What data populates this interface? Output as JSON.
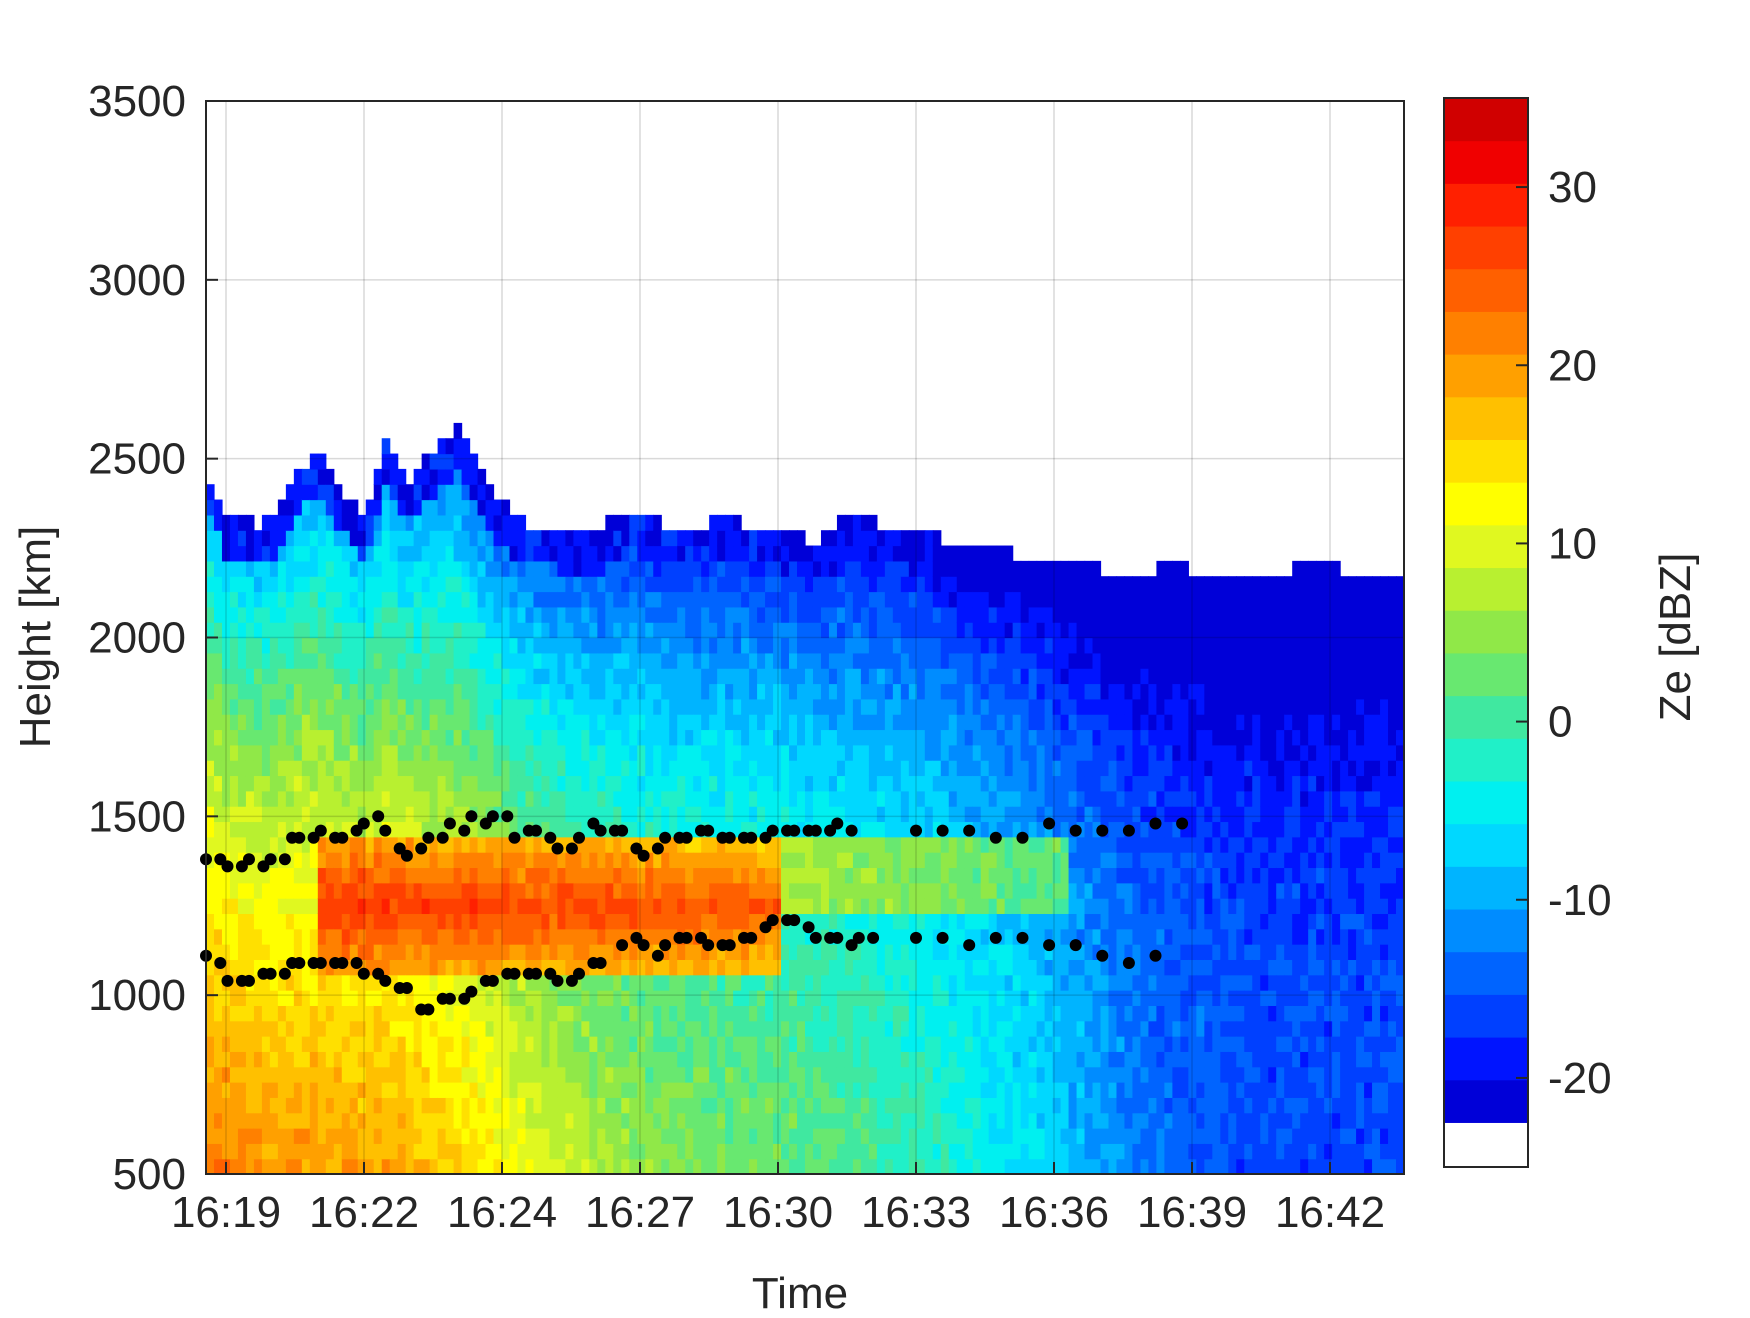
{
  "chart_data": {
    "type": "heatmap",
    "title": "",
    "xlabel": "Time",
    "ylabel": "Height [km]",
    "colorbar_label": "Ze [dBZ]",
    "x_time_minutes": [
      1099,
      1143.5
    ],
    "ylim": [
      500,
      3500
    ],
    "x_ticks": [
      {
        "label": "16:19",
        "value": 1099.8
      },
      {
        "label": "16:22",
        "value": 1102.6
      },
      {
        "label": "16:24",
        "value": 1105.4
      },
      {
        "label": "16:27",
        "value": 1108.2
      },
      {
        "label": "16:30",
        "value": 1111.0
      },
      {
        "label": "16:33",
        "value": 1113.8
      },
      {
        "label": "16:36",
        "value": 1116.6
      },
      {
        "label": "16:39",
        "value": 1119.4
      },
      {
        "label": "16:42",
        "value": 1122.2
      }
    ],
    "y_ticks": [
      {
        "label": "3500",
        "value": 3500
      },
      {
        "label": "3000",
        "value": 3000
      },
      {
        "label": "2500",
        "value": 2500
      },
      {
        "label": "2000",
        "value": 2000
      },
      {
        "label": "1500",
        "value": 1500
      },
      {
        "label": "1000",
        "value": 1000
      },
      {
        "label": "500",
        "value": 500
      }
    ],
    "grid": true,
    "colorbar": {
      "range": [
        -25,
        35
      ],
      "nodata_color": "#ffffff",
      "ticks": [
        {
          "label": "30",
          "value": 30
        },
        {
          "label": "20",
          "value": 20
        },
        {
          "label": "10",
          "value": 10
        },
        {
          "label": "0",
          "value": 0
        },
        {
          "label": "-10",
          "value": -10
        },
        {
          "label": "-20",
          "value": -20
        }
      ],
      "colors": [
        "#0000d8",
        "#0014ff",
        "#0040ff",
        "#0064ff",
        "#008cff",
        "#00b4ff",
        "#00d8ff",
        "#00f0f0",
        "#20f0c8",
        "#40e8a0",
        "#68e870",
        "#90e848",
        "#b8f030",
        "#e0f820",
        "#ffff00",
        "#ffe000",
        "#ffc000",
        "#ffa000",
        "#ff8000",
        "#ff6000",
        "#ff4000",
        "#ff2000",
        "#f00000",
        "#d00000"
      ]
    },
    "field": {
      "cloud_top": [
        [
          16.3,
          2450
        ],
        [
          16.33,
          2320
        ],
        [
          16.38,
          2290
        ],
        [
          16.45,
          2500
        ],
        [
          16.47,
          2460
        ],
        [
          16.52,
          2300
        ],
        [
          16.55,
          2540
        ],
        [
          16.58,
          2420
        ],
        [
          16.65,
          2560
        ],
        [
          16.7,
          2370
        ],
        [
          16.75,
          2300
        ],
        [
          16.8,
          2290
        ],
        [
          16.85,
          2290
        ],
        [
          16.9,
          2340
        ],
        [
          16.95,
          2290
        ],
        [
          17.0,
          2300
        ],
        [
          17.05,
          2300
        ],
        [
          17.1,
          2270
        ],
        [
          17.15,
          2250
        ],
        [
          17.2,
          2330
        ],
        [
          17.25,
          2290
        ],
        [
          17.3,
          2280
        ],
        [
          17.35,
          2240
        ],
        [
          17.4,
          2230
        ],
        [
          17.45,
          2200
        ],
        [
          17.5,
          2190
        ],
        [
          17.55,
          2170
        ],
        [
          17.6,
          2160
        ],
        [
          17.65,
          2180
        ],
        [
          17.7,
          2160
        ],
        [
          17.75,
          2140
        ],
        [
          17.8,
          2160
        ],
        [
          17.85,
          2190
        ],
        [
          17.9,
          2160
        ],
        [
          17.95,
          2160
        ]
      ],
      "rain_layer": {
        "from": 16.45,
        "to": 17.1,
        "bottom": 1050,
        "top": 1400,
        "dbz": 28
      },
      "columns": [
        [
          16.3,
          22
        ],
        [
          16.4,
          20
        ],
        [
          16.55,
          19
        ],
        [
          16.7,
          13
        ],
        [
          16.8,
          8
        ],
        [
          16.95,
          4
        ],
        [
          17.1,
          3
        ],
        [
          17.3,
          -1
        ],
        [
          17.45,
          -6
        ],
        [
          17.6,
          -13
        ],
        [
          17.75,
          -16
        ],
        [
          17.95,
          -16
        ]
      ]
    },
    "series": [
      {
        "points": [
          [
            16.3,
            1380
          ],
          [
            16.32,
            1380
          ],
          [
            16.33,
            1360
          ],
          [
            16.35,
            1360
          ],
          [
            16.36,
            1380
          ],
          [
            16.38,
            1360
          ],
          [
            16.39,
            1380
          ],
          [
            16.41,
            1380
          ],
          [
            16.42,
            1440
          ],
          [
            16.43,
            1440
          ],
          [
            16.45,
            1440
          ],
          [
            16.46,
            1460
          ],
          [
            16.48,
            1440
          ],
          [
            16.49,
            1440
          ],
          [
            16.51,
            1460
          ],
          [
            16.52,
            1480
          ],
          [
            16.54,
            1500
          ],
          [
            16.55,
            1460
          ],
          [
            16.57,
            1410
          ],
          [
            16.58,
            1390
          ],
          [
            16.6,
            1410
          ],
          [
            16.61,
            1440
          ],
          [
            16.63,
            1440
          ],
          [
            16.64,
            1480
          ],
          [
            16.66,
            1460
          ],
          [
            16.67,
            1500
          ],
          [
            16.69,
            1480
          ],
          [
            16.7,
            1500
          ],
          [
            16.72,
            1500
          ],
          [
            16.73,
            1440
          ],
          [
            16.75,
            1460
          ],
          [
            16.76,
            1460
          ],
          [
            16.78,
            1440
          ],
          [
            16.79,
            1410
          ],
          [
            16.81,
            1410
          ],
          [
            16.82,
            1440
          ],
          [
            16.84,
            1480
          ],
          [
            16.85,
            1460
          ],
          [
            16.87,
            1460
          ],
          [
            16.88,
            1460
          ],
          [
            16.9,
            1410
          ],
          [
            16.91,
            1390
          ],
          [
            16.93,
            1410
          ],
          [
            16.94,
            1440
          ],
          [
            16.96,
            1440
          ],
          [
            16.97,
            1440
          ],
          [
            16.99,
            1460
          ],
          [
            17.0,
            1460
          ],
          [
            17.02,
            1440
          ],
          [
            17.03,
            1440
          ],
          [
            17.05,
            1440
          ],
          [
            17.06,
            1440
          ],
          [
            17.08,
            1440
          ],
          [
            17.09,
            1460
          ],
          [
            17.11,
            1460
          ],
          [
            17.12,
            1460
          ],
          [
            17.14,
            1460
          ],
          [
            17.15,
            1460
          ],
          [
            17.17,
            1460
          ],
          [
            17.18,
            1480
          ],
          [
            17.2,
            1460
          ]
        ]
      },
      {
        "points": [
          [
            16.3,
            1110
          ],
          [
            16.32,
            1090
          ],
          [
            16.33,
            1040
          ],
          [
            16.35,
            1040
          ],
          [
            16.36,
            1040
          ],
          [
            16.38,
            1060
          ],
          [
            16.39,
            1060
          ],
          [
            16.41,
            1060
          ],
          [
            16.42,
            1090
          ],
          [
            16.43,
            1090
          ],
          [
            16.45,
            1090
          ],
          [
            16.46,
            1090
          ],
          [
            16.48,
            1090
          ],
          [
            16.49,
            1090
          ],
          [
            16.51,
            1090
          ],
          [
            16.52,
            1060
          ],
          [
            16.54,
            1060
          ],
          [
            16.55,
            1040
          ],
          [
            16.57,
            1020
          ],
          [
            16.58,
            1020
          ],
          [
            16.6,
            960
          ],
          [
            16.61,
            960
          ],
          [
            16.63,
            990
          ],
          [
            16.64,
            990
          ],
          [
            16.66,
            990
          ],
          [
            16.67,
            1010
          ],
          [
            16.69,
            1040
          ],
          [
            16.7,
            1040
          ],
          [
            16.72,
            1060
          ],
          [
            16.73,
            1060
          ],
          [
            16.75,
            1060
          ],
          [
            16.76,
            1060
          ],
          [
            16.78,
            1060
          ],
          [
            16.79,
            1040
          ],
          [
            16.81,
            1040
          ],
          [
            16.82,
            1060
          ],
          [
            16.84,
            1090
          ],
          [
            16.85,
            1090
          ],
          [
            16.88,
            1140
          ],
          [
            16.9,
            1160
          ],
          [
            16.91,
            1140
          ],
          [
            16.93,
            1110
          ],
          [
            16.94,
            1140
          ],
          [
            16.96,
            1160
          ],
          [
            16.97,
            1160
          ],
          [
            16.99,
            1160
          ],
          [
            17.0,
            1140
          ],
          [
            17.02,
            1140
          ],
          [
            17.03,
            1140
          ],
          [
            17.05,
            1160
          ],
          [
            17.06,
            1160
          ],
          [
            17.08,
            1190
          ],
          [
            17.09,
            1210
          ],
          [
            17.11,
            1210
          ],
          [
            17.12,
            1210
          ],
          [
            17.14,
            1190
          ],
          [
            17.15,
            1160
          ],
          [
            17.17,
            1160
          ],
          [
            17.18,
            1160
          ],
          [
            17.2,
            1140
          ],
          [
            17.21,
            1160
          ],
          [
            17.23,
            1160
          ]
        ]
      }
    ]
  }
}
